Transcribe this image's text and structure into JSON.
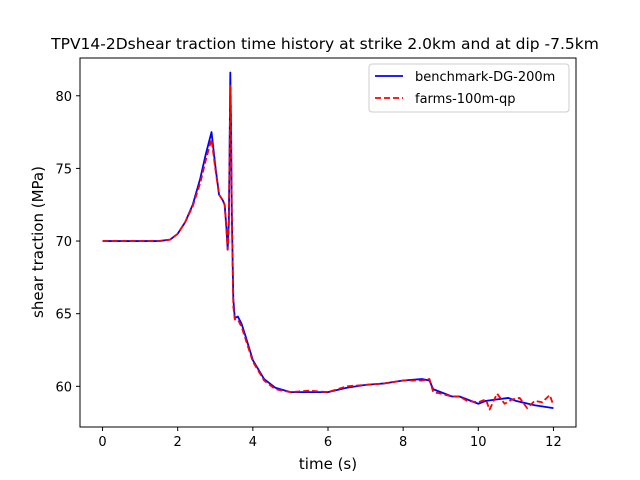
{
  "chart_data": {
    "type": "line",
    "title": "TPV14-2Dshear traction time history at strike 2.0km and at dip -7.5km",
    "xlabel": "time (s)",
    "ylabel": "shear traction (MPa)",
    "xlim": [
      -0.6,
      12.6
    ],
    "ylim": [
      57.2,
      82.6
    ],
    "xticks": [
      0,
      2,
      4,
      6,
      8,
      10,
      12
    ],
    "yticks": [
      60,
      65,
      70,
      75,
      80
    ],
    "grid": false,
    "legend_position": "upper right",
    "series": [
      {
        "name": "benchmark-DG-200m",
        "color": "#0000ff",
        "style": "solid",
        "x": [
          0,
          0.5,
          1.0,
          1.5,
          1.8,
          2.0,
          2.2,
          2.4,
          2.6,
          2.75,
          2.9,
          3.0,
          3.1,
          3.2,
          3.25,
          3.3,
          3.33,
          3.36,
          3.38,
          3.4,
          3.42,
          3.44,
          3.48,
          3.52,
          3.6,
          3.7,
          3.8,
          4.0,
          4.3,
          4.6,
          5.0,
          5.5,
          6.0,
          6.5,
          7.0,
          7.5,
          8.0,
          8.5,
          8.7,
          8.8,
          9.0,
          9.3,
          9.5,
          9.7,
          10.0,
          10.2,
          10.5,
          10.8,
          11.0,
          11.5,
          12.0
        ],
        "y": [
          70.0,
          70.0,
          70.0,
          70.0,
          70.1,
          70.5,
          71.3,
          72.5,
          74.3,
          76.0,
          77.5,
          75.2,
          73.2,
          72.8,
          72.5,
          70.8,
          69.4,
          71.2,
          76.0,
          81.6,
          78.0,
          72.0,
          66.0,
          64.7,
          64.8,
          64.3,
          63.5,
          61.8,
          60.5,
          59.9,
          59.6,
          59.6,
          59.6,
          59.9,
          60.1,
          60.2,
          60.4,
          60.5,
          60.4,
          59.8,
          59.6,
          59.3,
          59.3,
          59.1,
          58.8,
          59.0,
          59.1,
          59.2,
          59.0,
          58.7,
          58.5
        ]
      },
      {
        "name": "farms-100m-qp",
        "color": "#ff0000",
        "style": "dashed",
        "x": [
          0,
          0.5,
          1.0,
          1.5,
          1.8,
          2.0,
          2.2,
          2.4,
          2.6,
          2.75,
          2.9,
          3.0,
          3.1,
          3.2,
          3.25,
          3.3,
          3.33,
          3.36,
          3.38,
          3.4,
          3.42,
          3.44,
          3.48,
          3.52,
          3.6,
          3.7,
          3.8,
          4.0,
          4.3,
          4.6,
          5.0,
          5.5,
          6.0,
          6.5,
          7.0,
          7.5,
          8.0,
          8.5,
          8.7,
          8.8,
          9.0,
          9.3,
          9.5,
          9.7,
          10.0,
          10.2,
          10.3,
          10.5,
          10.7,
          10.9,
          11.1,
          11.3,
          11.5,
          11.7,
          11.9,
          12.0
        ],
        "y": [
          70.0,
          70.0,
          70.0,
          70.0,
          70.1,
          70.5,
          71.3,
          72.4,
          74.0,
          75.6,
          77.0,
          75.0,
          73.2,
          72.8,
          72.5,
          70.6,
          69.4,
          71.0,
          75.5,
          80.7,
          77.5,
          71.8,
          65.5,
          64.6,
          64.6,
          64.1,
          63.3,
          61.7,
          60.4,
          59.8,
          59.6,
          59.7,
          59.6,
          60.0,
          60.1,
          60.2,
          60.4,
          60.4,
          60.5,
          59.6,
          59.5,
          59.3,
          59.3,
          59.0,
          58.9,
          59.1,
          58.4,
          59.5,
          58.8,
          59.1,
          59.2,
          58.5,
          59.0,
          58.9,
          59.4,
          58.7
        ]
      }
    ]
  }
}
